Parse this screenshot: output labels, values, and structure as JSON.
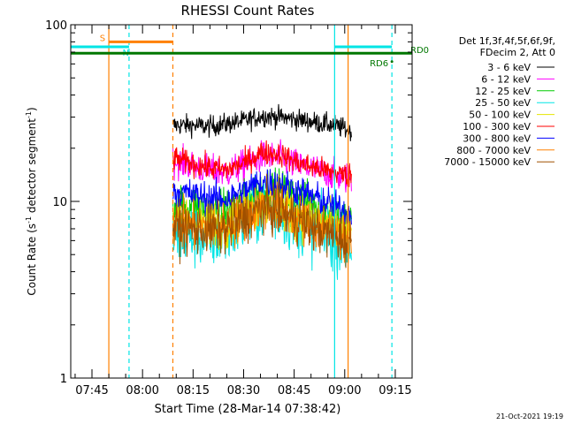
{
  "chart_data": {
    "type": "line",
    "title": "RHESSI Count Rates",
    "xlabel": "Start Time (28-Mar-14 07:38:42)",
    "ylabel": "Count Rate (s⁻¹ detector segment⁻¹)",
    "ylabel_main": "Count Rate (s",
    "ylabel_sup1": "-1",
    "ylabel_mid": " detector segment",
    "ylabel_sup2": "-1",
    "ylabel_end": ")",
    "y_scale": "log",
    "ylim": [
      1,
      100
    ],
    "xlim": [
      "07:38:42",
      "09:20"
    ],
    "x_ticks": [
      "07:45",
      "08:00",
      "08:15",
      "08:30",
      "08:45",
      "09:00",
      "09:15"
    ],
    "y_ticks": [
      "1",
      "10",
      "100"
    ],
    "legend_header": [
      "Det 1f,3f,4f,5f,6f,9f,",
      "FDecim 2, Att 0"
    ],
    "legend_position": "right",
    "series": [
      {
        "name": "3 - 6 keV",
        "color": "#000000",
        "level": [
          27,
          27,
          26.5,
          27.5,
          28.5,
          30.5,
          30,
          29,
          28,
          27,
          25
        ],
        "noise": 0.03
      },
      {
        "name": "6 - 12 keV",
        "color": "#ff00ff",
        "level": [
          17,
          16,
          15,
          14.5,
          16,
          18,
          17.5,
          16,
          15,
          14,
          13.5
        ],
        "noise": 0.045
      },
      {
        "name": "12 - 25 keV",
        "color": "#00cc00",
        "level": [
          9.5,
          9.5,
          9,
          8.8,
          10,
          12,
          11.5,
          10.5,
          9.5,
          8.5,
          7.5
        ],
        "noise": 0.06
      },
      {
        "name": "25 - 50 keV",
        "color": "#00e5e5",
        "level": [
          6.5,
          6.3,
          6.2,
          6.4,
          7.5,
          9,
          8.5,
          7.5,
          6.8,
          6.2,
          5.5
        ],
        "noise": 0.09
      },
      {
        "name": "50 - 100 keV",
        "color": "#e5e500",
        "level": [
          8,
          7.8,
          7.5,
          7.5,
          8.5,
          9.8,
          9.5,
          8.5,
          7.8,
          7.2,
          6.5
        ],
        "noise": 0.07
      },
      {
        "name": "100 - 300 keV",
        "color": "#ff0000",
        "level": [
          17.5,
          16.5,
          15.5,
          15,
          16.5,
          19,
          18.5,
          16.5,
          15.5,
          14.5,
          14
        ],
        "noise": 0.035
      },
      {
        "name": "300 - 800 keV",
        "color": "#0000ff",
        "level": [
          11.5,
          11,
          10.5,
          10.3,
          11.5,
          13,
          12.5,
          11.5,
          10.5,
          9.5,
          8.5
        ],
        "noise": 0.045
      },
      {
        "name": "800 - 7000 keV",
        "color": "#ff8000",
        "level": [
          7.5,
          7.2,
          7,
          7.2,
          8.2,
          9.5,
          9,
          8,
          7.2,
          6.6,
          6
        ],
        "noise": 0.07
      },
      {
        "name": "7000 - 15000 keV",
        "color": "#a05000",
        "level": [
          7.2,
          7,
          6.8,
          7,
          8,
          9.2,
          8.8,
          7.8,
          7,
          6.4,
          5.8
        ],
        "noise": 0.07
      }
    ],
    "data_window": [
      "08:09",
      "09:02"
    ],
    "annotations": [
      {
        "label": "S",
        "color": "#ff8000",
        "type": "bar",
        "from": "07:50",
        "to": "08:09",
        "y": 80
      },
      {
        "label": "N",
        "color": "#00e5e5",
        "type": "bar",
        "from": "07:38:42",
        "to": "07:56",
        "y": 75
      },
      {
        "label": "N2",
        "color": "#00e5e5",
        "type": "bar",
        "from": "08:57",
        "to": "09:14",
        "y": 75
      },
      {
        "label": "RD0",
        "color": "#007700",
        "type": "bar",
        "from": "07:38:42",
        "to": "09:20",
        "y": 69
      },
      {
        "label": "RD6",
        "color": "#007700",
        "type": "marker",
        "at": "09:14",
        "y": 64
      }
    ],
    "vlines": [
      {
        "at": "07:50",
        "color": "#ff8000",
        "style": "solid"
      },
      {
        "at": "07:56",
        "color": "#00e5e5",
        "style": "dashed"
      },
      {
        "at": "08:09",
        "color": "#ff8000",
        "style": "dashed"
      },
      {
        "at": "08:57",
        "color": "#00e5e5",
        "style": "solid"
      },
      {
        "at": "09:01",
        "color": "#ff8000",
        "style": "solid"
      },
      {
        "at": "09:14",
        "color": "#00e5e5",
        "style": "dashed"
      }
    ],
    "timestamp": "21-Oct-2021 19:19"
  }
}
